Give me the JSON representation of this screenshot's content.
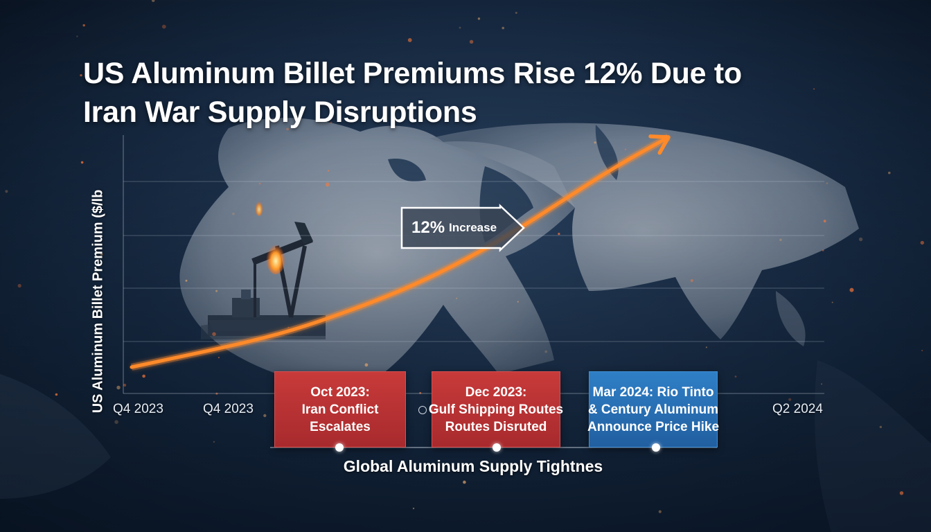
{
  "title_lines": [
    "US Aluminum Billet Premiums Rise 12% Due to",
    "Iran War Supply Disruptions"
  ],
  "callout": {
    "value": "12%",
    "text": "Increase"
  },
  "footer": "Global Aluminum Supply Tightnes",
  "events": [
    {
      "lines": [
        "Oct 2023:",
        "Iran Conflict",
        "Escalates"
      ],
      "color": "#b83235"
    },
    {
      "lines": [
        "Dec 2023:",
        "Gulf Shipping Routes",
        "Routes Disruted"
      ],
      "color": "#b83235"
    },
    {
      "lines": [
        "Mar 2024: Rio Tinto",
        "& Century Aluminum",
        "Announce Price Hike"
      ],
      "color": "#2a6db3"
    }
  ],
  "colors": {
    "trend": "#ff8a2a",
    "background": "#0c1828"
  },
  "chart_data": {
    "type": "line",
    "ylabel": "US Aluminum Billet Premium ($/lb",
    "x_ticks": [
      "Q4 2023",
      "Q4 2023",
      "Q2 2024"
    ],
    "y_scale_labeled": false,
    "trend": {
      "x": [
        0,
        0.1,
        0.2,
        0.3,
        0.4,
        0.5,
        0.6,
        0.7,
        0.8,
        0.9,
        1.0
      ],
      "y": [
        0,
        0.05,
        0.1,
        0.16,
        0.24,
        0.33,
        0.44,
        0.57,
        0.72,
        0.87,
        1.0
      ]
    },
    "gridlines": 5,
    "annotation": "12% Increase"
  }
}
